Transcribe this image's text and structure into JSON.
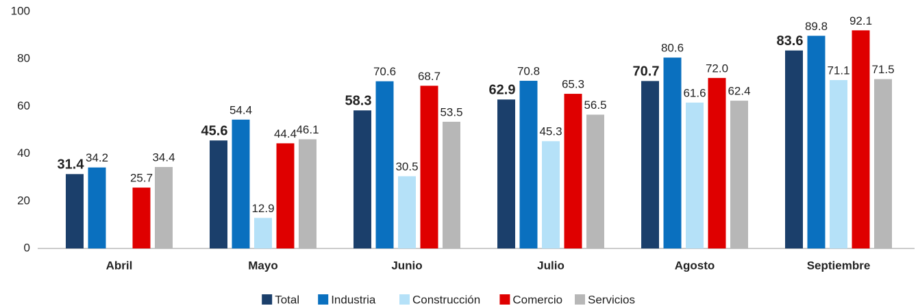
{
  "chart_data": {
    "type": "bar",
    "categories": [
      "Abril",
      "Mayo",
      "Junio",
      "Julio",
      "Agosto",
      "Septiembre"
    ],
    "series": [
      {
        "name": "Total",
        "color": "#1b3f6b",
        "values": [
          31.4,
          45.6,
          58.3,
          62.9,
          70.7,
          83.6
        ],
        "value_labels": [
          "31.4",
          "45.6",
          "58.3",
          "62.9",
          "70.7",
          "83.6"
        ]
      },
      {
        "name": "Industria",
        "color": "#0a70bf",
        "values": [
          34.2,
          54.4,
          70.6,
          70.8,
          80.6,
          89.8
        ],
        "value_labels": [
          "34.2",
          "54.4",
          "70.6",
          "70.8",
          "80.6",
          "89.8"
        ]
      },
      {
        "name": "Construcción",
        "color": "#b5e1f8",
        "values": [
          null,
          12.9,
          30.5,
          45.3,
          61.6,
          71.1
        ],
        "value_labels": [
          null,
          "12.9",
          "30.5",
          "45.3",
          "61.6",
          "71.1"
        ]
      },
      {
        "name": "Comercio",
        "color": "#df0000",
        "values": [
          25.7,
          44.4,
          68.7,
          65.3,
          72.0,
          92.1
        ],
        "value_labels": [
          "25.7",
          "44.4",
          "68.7",
          "65.3",
          "72.0",
          "92.1"
        ]
      },
      {
        "name": "Servicios",
        "color": "#b7b7b7",
        "values": [
          34.4,
          46.1,
          53.5,
          56.5,
          62.4,
          71.5
        ],
        "value_labels": [
          "34.4",
          "46.1",
          "53.5",
          "56.5",
          "62.4",
          "71.5"
        ]
      }
    ],
    "ylim": [
      0,
      100
    ],
    "yticks": [
      0,
      20,
      40,
      60,
      80,
      100
    ],
    "grid": false,
    "legend": "bottom"
  }
}
